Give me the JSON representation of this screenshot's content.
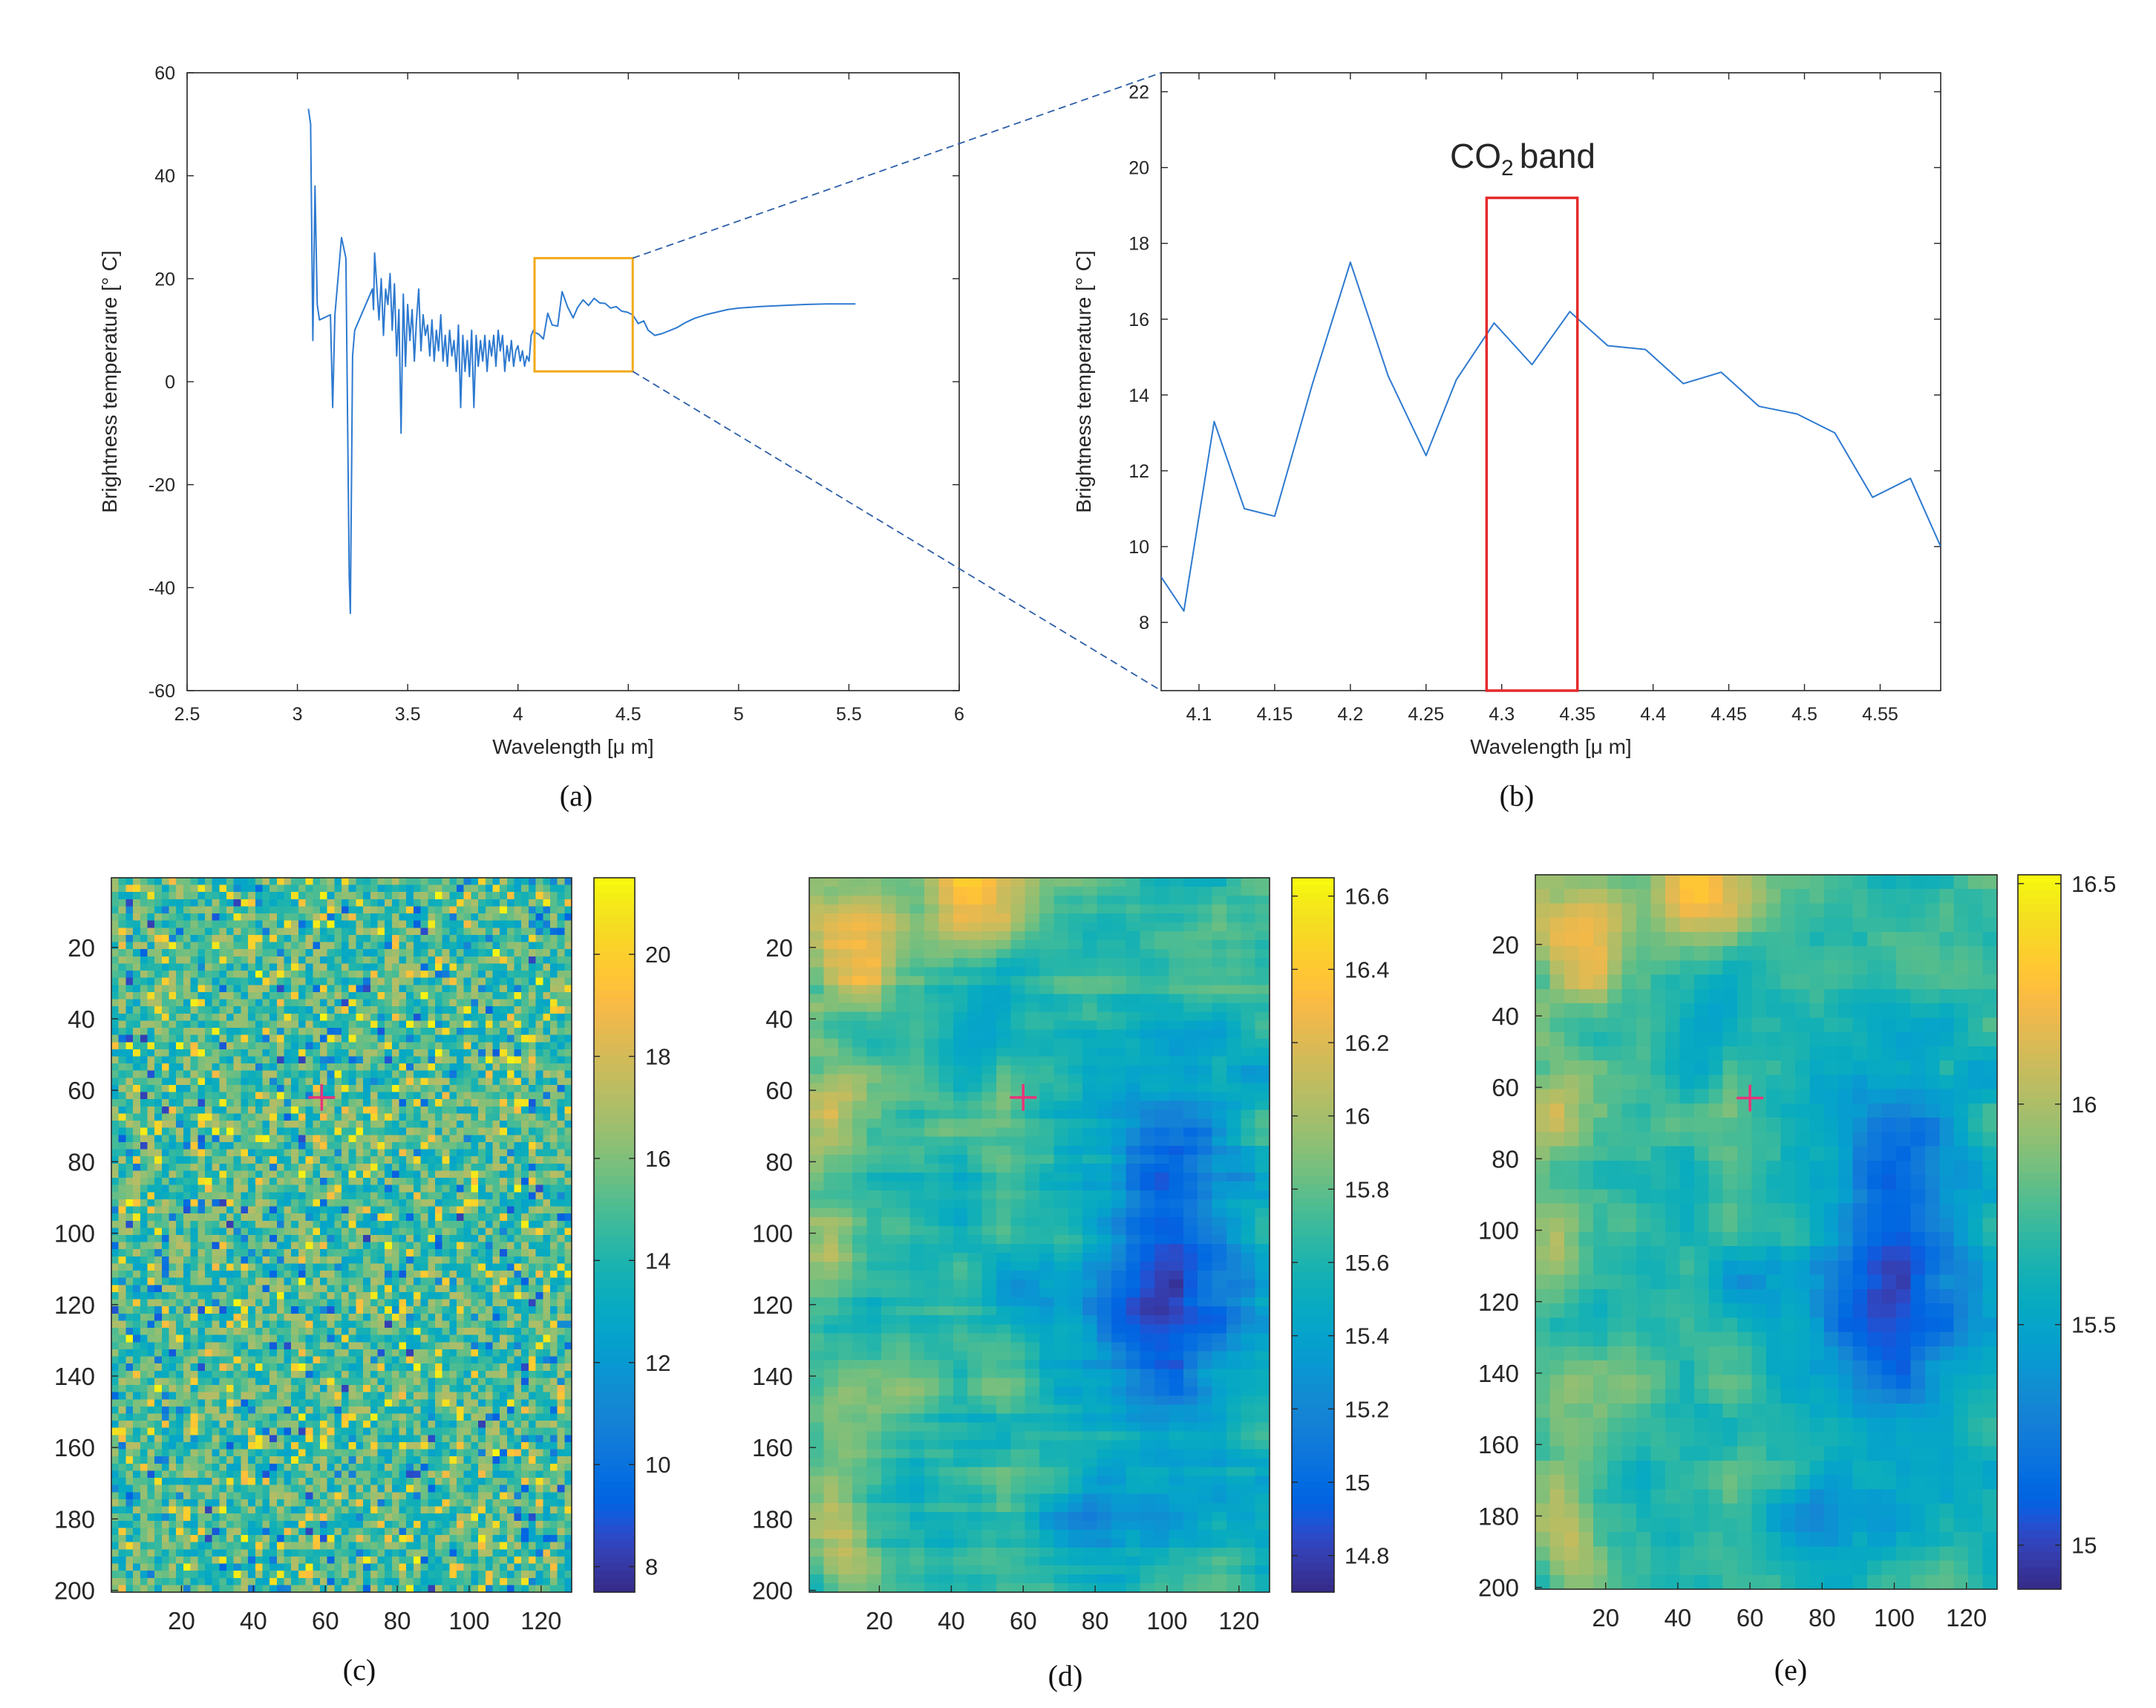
{
  "chart_data": [
    {
      "panel": "a",
      "type": "line",
      "caption": "(a)",
      "xlabel": "Wavelength [μ m]",
      "ylabel": "Brightness temperature [° C]",
      "xlim": [
        2.5,
        6
      ],
      "ylim": [
        -60,
        60
      ],
      "xticks": [
        "2.5",
        "3",
        "3.5",
        "4",
        "4.5",
        "5",
        "5.5",
        "6"
      ],
      "yticks": [
        "-60",
        "-40",
        "-20",
        "0",
        "20",
        "40",
        "60"
      ],
      "series_color": "#2e7ad0",
      "x": [
        3.05,
        3.06,
        3.07,
        3.08,
        3.09,
        3.1,
        3.15,
        3.16,
        3.17,
        3.2,
        3.22,
        3.235,
        3.24,
        3.25,
        3.26,
        3.34,
        3.345,
        3.35,
        3.37,
        3.38,
        3.39,
        3.4,
        3.41,
        3.42,
        3.43,
        3.44,
        3.45,
        3.46,
        3.47,
        3.48,
        3.49,
        3.5,
        3.51,
        3.52,
        3.53,
        3.54,
        3.55,
        3.56,
        3.57,
        3.58,
        3.59,
        3.6,
        3.61,
        3.62,
        3.63,
        3.64,
        3.65,
        3.66,
        3.67,
        3.68,
        3.69,
        3.7,
        3.71,
        3.72,
        3.73,
        3.74,
        3.75,
        3.76,
        3.77,
        3.78,
        3.79,
        3.8,
        3.81,
        3.82,
        3.83,
        3.84,
        3.85,
        3.86,
        3.87,
        3.88,
        3.89,
        3.9,
        3.91,
        3.92,
        3.93,
        3.94,
        3.95,
        3.96,
        3.97,
        3.98,
        3.99,
        4.0,
        4.01,
        4.02,
        4.03,
        4.04,
        4.05,
        4.06,
        4.07,
        4.08,
        4.095,
        4.115,
        4.135,
        4.155,
        4.18,
        4.2,
        4.225,
        4.25,
        4.27,
        4.295,
        4.32,
        4.345,
        4.37,
        4.395,
        4.42,
        4.445,
        4.47,
        4.495,
        4.52,
        4.545,
        4.57,
        4.59,
        4.62,
        4.65,
        4.68,
        4.72,
        4.76,
        4.8,
        4.85,
        4.9,
        4.95,
        5.0,
        5.1,
        5.2,
        5.3,
        5.4,
        5.5,
        5.53
      ],
      "y": [
        53,
        50,
        8,
        38,
        15,
        12,
        13,
        -5,
        13,
        28,
        24,
        -38,
        -45,
        5,
        10,
        18,
        14,
        25,
        12,
        20,
        9,
        18,
        15,
        21,
        10,
        19,
        5,
        14,
        -10,
        17,
        3,
        15,
        8,
        14,
        4,
        12,
        18,
        6,
        13,
        9,
        11,
        5,
        12,
        4,
        10,
        6,
        13,
        4,
        9,
        3,
        10,
        5,
        8,
        2,
        11,
        -5,
        9,
        2,
        8,
        1,
        10,
        -5,
        9,
        3,
        8,
        4,
        9,
        2,
        8,
        5,
        9,
        3,
        10,
        6,
        9,
        2,
        7,
        4,
        8,
        3,
        6,
        7,
        4,
        6,
        3,
        5,
        4,
        9,
        10,
        9.5,
        9.2,
        8.3,
        13.3,
        11.0,
        10.8,
        17.5,
        14.5,
        12.4,
        14.4,
        15.9,
        14.8,
        16.2,
        15.3,
        15.2,
        14.3,
        14.6,
        13.7,
        13.5,
        13.0,
        11.3,
        11.8,
        10.0,
        9.0,
        9.3,
        9.8,
        10.5,
        11.5,
        12.3,
        13.0,
        13.5,
        14.0,
        14.3,
        14.6,
        14.8,
        15.0,
        15.1,
        15.1,
        15.1
      ]
    },
    {
      "panel": "b",
      "type": "line",
      "caption": "(b)",
      "xlabel": "Wavelength [μ m]",
      "ylabel": "Brightness temperature [° C]",
      "xlim": [
        4.075,
        4.59
      ],
      "ylim": [
        6.2,
        22.5
      ],
      "xticks": [
        "4.1",
        "4.15",
        "4.2",
        "4.25",
        "4.3",
        "4.35",
        "4.4",
        "4.45",
        "4.5",
        "4.55"
      ],
      "yticks": [
        "8",
        "10",
        "12",
        "14",
        "16",
        "18",
        "20",
        "22"
      ],
      "series_color": "#2e7ad0",
      "x": [
        4.075,
        4.09,
        4.11,
        4.13,
        4.15,
        4.175,
        4.2,
        4.225,
        4.25,
        4.27,
        4.295,
        4.32,
        4.345,
        4.37,
        4.395,
        4.42,
        4.445,
        4.47,
        4.495,
        4.52,
        4.545,
        4.57,
        4.59
      ],
      "y": [
        9.2,
        8.3,
        13.3,
        11.0,
        10.8,
        14.3,
        17.5,
        14.5,
        12.4,
        14.4,
        15.9,
        14.8,
        16.2,
        15.3,
        15.2,
        14.3,
        14.6,
        13.7,
        13.5,
        13.0,
        11.3,
        11.8,
        10.0
      ],
      "annotation_prefix": "CO",
      "annotation_subscript": "2",
      "annotation_suffix": "band",
      "highlight_xrange": [
        4.29,
        4.35
      ],
      "highlight_yrange": [
        6.2,
        19.2
      ],
      "highlight_color": "#e52a2a"
    },
    {
      "panel": "c",
      "type": "heatmap",
      "caption": "(c)",
      "xticks": [
        "20",
        "40",
        "60",
        "80",
        "100",
        "120"
      ],
      "yticks": [
        "20",
        "40",
        "60",
        "80",
        "100",
        "120",
        "140",
        "160",
        "180",
        "200"
      ],
      "xlim": [
        0.5,
        128.5
      ],
      "ylim": [
        0.5,
        200.5
      ],
      "colorbar_range": [
        7.5,
        21.5
      ],
      "colorbar_ticks": [
        "8",
        "10",
        "12",
        "14",
        "16",
        "18",
        "20"
      ],
      "marker": [
        59,
        62
      ],
      "marker_color": "#e8337a",
      "texture": "noise"
    },
    {
      "panel": "d",
      "type": "heatmap",
      "caption": "(d)",
      "xticks": [
        "20",
        "40",
        "60",
        "80",
        "100",
        "120"
      ],
      "yticks": [
        "20",
        "40",
        "60",
        "80",
        "100",
        "120",
        "140",
        "160",
        "180",
        "200"
      ],
      "xlim": [
        0.5,
        128.5
      ],
      "ylim": [
        0.5,
        200.5
      ],
      "colorbar_range": [
        14.7,
        16.65
      ],
      "colorbar_ticks": [
        "14.8",
        "15",
        "15.2",
        "15.4",
        "15.6",
        "15.8",
        "16",
        "16.2",
        "16.4",
        "16.6"
      ],
      "marker": [
        60,
        62
      ],
      "marker_color": "#e8337a",
      "texture": "streaked"
    },
    {
      "panel": "e",
      "type": "heatmap",
      "caption": "(e)",
      "xticks": [
        "20",
        "40",
        "60",
        "80",
        "100",
        "120"
      ],
      "yticks": [
        "20",
        "40",
        "60",
        "80",
        "100",
        "120",
        "140",
        "160",
        "180",
        "200"
      ],
      "xlim": [
        0.5,
        128.5
      ],
      "ylim": [
        0.5,
        200.5
      ],
      "colorbar_range": [
        14.9,
        16.52
      ],
      "colorbar_ticks": [
        "15",
        "15.5",
        "16",
        "16.5"
      ],
      "marker": [
        60,
        63
      ],
      "marker_color": "#e8337a",
      "texture": "smooth"
    }
  ]
}
